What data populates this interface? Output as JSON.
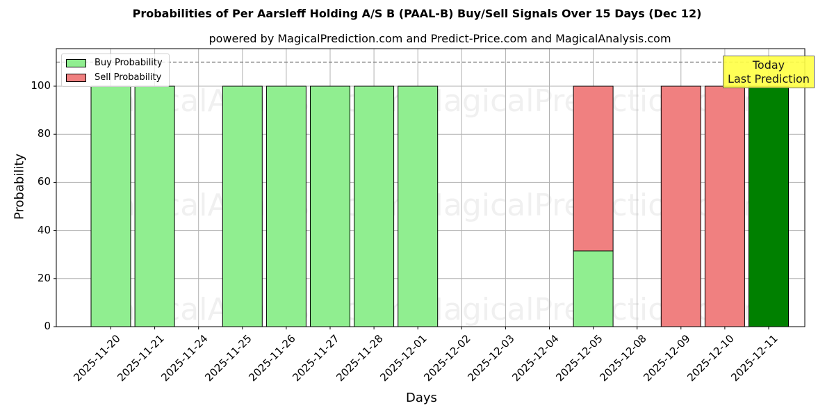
{
  "chart_data": {
    "type": "bar",
    "stacked": true,
    "title": "Probabilities of Per Aarsleff Holding A/S B (PAAL-B) Buy/Sell Signals Over 15 Days (Dec 12)",
    "subtitle": "powered by MagicalPrediction.com and Predict-Price.com and MagicalAnalysis.com",
    "xlabel": "Days",
    "ylabel": "Probability",
    "ylim": [
      0,
      115
    ],
    "yticks": [
      0,
      20,
      40,
      60,
      80,
      100
    ],
    "grid": true,
    "reference_line": {
      "y": 110,
      "style": "dashed",
      "color": "#808080"
    },
    "legend_position": "upper left",
    "categories": [
      "2025-11-20",
      "2025-11-21",
      "2025-11-24",
      "2025-11-25",
      "2025-11-26",
      "2025-11-27",
      "2025-11-28",
      "2025-12-01",
      "2025-12-02",
      "2025-12-03",
      "2025-12-04",
      "2025-12-05",
      "2025-12-08",
      "2025-12-09",
      "2025-12-10",
      "2025-12-11"
    ],
    "series": [
      {
        "name": "Buy Probability",
        "color": "#90ee90",
        "values": [
          100,
          100,
          0,
          100,
          100,
          100,
          100,
          100,
          0,
          0,
          0,
          31.5,
          0,
          0,
          0,
          100
        ]
      },
      {
        "name": "Sell Probability",
        "color": "#f08080",
        "values": [
          0,
          0,
          0,
          0,
          0,
          0,
          0,
          0,
          0,
          0,
          0,
          68.5,
          0,
          100,
          100,
          0
        ]
      }
    ],
    "highlight": {
      "category": "2025-12-11",
      "color": "#008000",
      "annotation": [
        "Today",
        "Last Prediction"
      ]
    },
    "watermarks": [
      "MagicalAnalysis.com",
      "MagicalPrediction.com"
    ]
  },
  "labels": {
    "title": "Probabilities of Per Aarsleff Holding A/S B (PAAL-B) Buy/Sell Signals Over 15 Days (Dec 12)",
    "subtitle": "powered by MagicalPrediction.com and Predict-Price.com and MagicalAnalysis.com",
    "xlabel": "Days",
    "ylabel": "Probability",
    "legend_buy": "Buy Probability",
    "legend_sell": "Sell Probability",
    "today_line1": "Today",
    "today_line2": "Last Prediction"
  }
}
